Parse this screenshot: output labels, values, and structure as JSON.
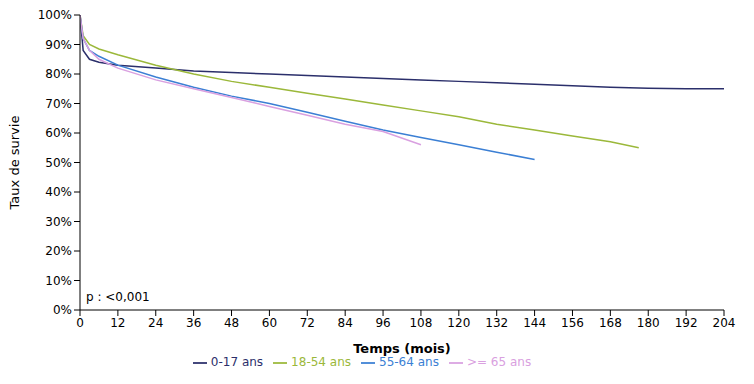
{
  "chart_data": {
    "type": "line",
    "x_label": "Temps (mois)",
    "y_label": "Taux de survie",
    "annotation": "p : <0,001",
    "xlim": [
      0,
      204
    ],
    "xticks": [
      0,
      12,
      24,
      36,
      48,
      60,
      72,
      84,
      96,
      108,
      120,
      132,
      144,
      156,
      168,
      180,
      192,
      204
    ],
    "ylim": [
      0,
      100
    ],
    "yticks": [
      {
        "value": 0,
        "label": "0%"
      },
      {
        "value": 10,
        "label": "10%"
      },
      {
        "value": 20,
        "label": "20%"
      },
      {
        "value": 30,
        "label": "30%"
      },
      {
        "value": 40,
        "label": "40%"
      },
      {
        "value": 50,
        "label": "50%"
      },
      {
        "value": 60,
        "label": "60%"
      },
      {
        "value": 70,
        "label": "70%"
      },
      {
        "value": 80,
        "label": "80%"
      },
      {
        "value": 90,
        "label": "90%"
      },
      {
        "value": 100,
        "label": "100%"
      }
    ],
    "grid": false,
    "legend": "bottom",
    "series": [
      {
        "name": "0-17 ans",
        "color": "#2b2f6b",
        "x": [
          0,
          1,
          3,
          6,
          12,
          24,
          36,
          48,
          60,
          72,
          84,
          96,
          108,
          120,
          132,
          144,
          156,
          168,
          180,
          192,
          204
        ],
        "values": [
          100,
          88,
          85,
          84,
          83,
          82,
          81,
          80.5,
          80,
          79.5,
          79,
          78.5,
          78,
          77.5,
          77,
          76.5,
          76,
          75.5,
          75.2,
          75,
          75
        ]
      },
      {
        "name": "18-54 ans",
        "color": "#9bb83a",
        "x": [
          0,
          1,
          3,
          6,
          12,
          24,
          36,
          48,
          60,
          72,
          84,
          96,
          108,
          120,
          132,
          144,
          156,
          168,
          177
        ],
        "values": [
          100,
          93,
          90,
          88.5,
          86.5,
          83,
          80,
          77.5,
          75.5,
          73.5,
          71.5,
          69.5,
          67.5,
          65.5,
          63,
          61,
          59,
          57,
          55
        ]
      },
      {
        "name": "55-64 ans",
        "color": "#3b7fd4",
        "x": [
          0,
          1,
          3,
          6,
          12,
          24,
          36,
          48,
          60,
          72,
          84,
          96,
          108,
          120,
          132,
          144
        ],
        "values": [
          100,
          92,
          88,
          86,
          83,
          79,
          75.5,
          72.5,
          70,
          67,
          64,
          61,
          58.5,
          56,
          53.5,
          51
        ]
      },
      {
        "name": ">= 65 ans",
        "color": "#d9a0e0",
        "x": [
          0,
          1,
          3,
          6,
          12,
          24,
          36,
          48,
          60,
          72,
          84,
          96,
          108
        ],
        "values": [
          100,
          92,
          88,
          85,
          82,
          78,
          75,
          72,
          69,
          66,
          63,
          60.5,
          56
        ]
      }
    ]
  }
}
